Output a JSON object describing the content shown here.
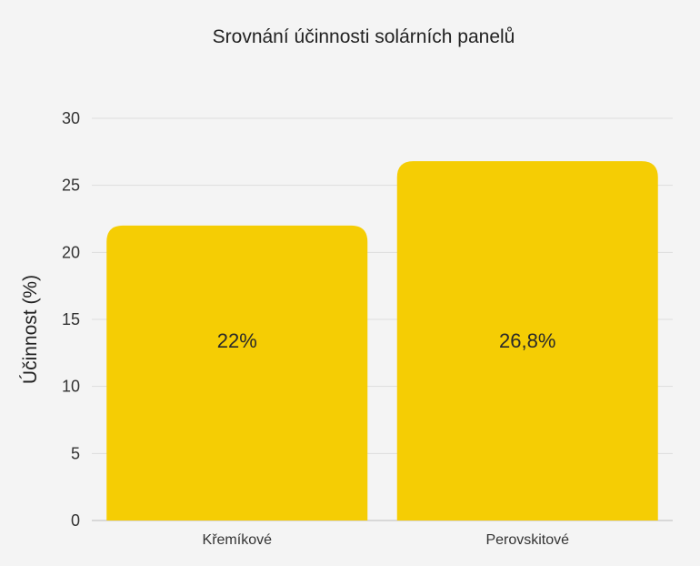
{
  "chart_data": {
    "type": "bar",
    "title": "Srovnání účinnosti solárních panelů",
    "xlabel": "",
    "ylabel": "Účinnost (%)",
    "categories": [
      "Křemíkové",
      "Perovskitové"
    ],
    "values": [
      22,
      26.8
    ],
    "data_labels": [
      "22%",
      "26,8%"
    ],
    "ylim": [
      0,
      30
    ],
    "yticks": [
      "0",
      "5",
      "10",
      "15",
      "20",
      "25",
      "30"
    ],
    "grid": true,
    "legend": "none",
    "colors": {
      "bar": "#f5cd04",
      "background": "#f4f4f4",
      "grid": "#dedede"
    }
  }
}
